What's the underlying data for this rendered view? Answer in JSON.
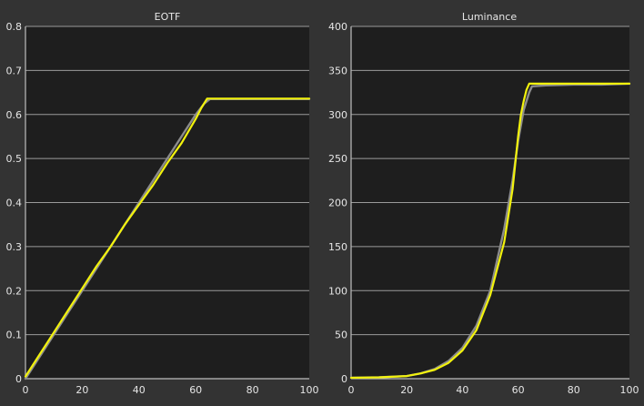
{
  "chart_data": [
    {
      "type": "line",
      "title": "EOTF",
      "xlabel": "",
      "ylabel": "",
      "xlim": [
        0,
        100
      ],
      "ylim": [
        0,
        0.8
      ],
      "xticks": [
        0,
        20,
        40,
        60,
        80,
        100
      ],
      "yticks": [
        0,
        0.1,
        0.2,
        0.3,
        0.4,
        0.5,
        0.6,
        0.7,
        0.8
      ],
      "ytick_labels": [
        "0",
        "0.1",
        "0.2",
        "0.3",
        "0.4",
        "0.5",
        "0.6",
        "0.7",
        "0.8"
      ],
      "grid": true,
      "background": "#1e1e1e",
      "series": [
        {
          "color": "#8c8c8c",
          "x": [
            0,
            5,
            10,
            15,
            20,
            25,
            30,
            35,
            40,
            45,
            50,
            55,
            60,
            63,
            65,
            70,
            80,
            90,
            100
          ],
          "y": [
            0,
            0.05,
            0.1,
            0.15,
            0.2,
            0.25,
            0.3,
            0.35,
            0.4,
            0.45,
            0.5,
            0.55,
            0.6,
            0.625,
            0.635,
            0.635,
            0.635,
            0.635,
            0.635
          ]
        },
        {
          "color": "#f2f20d",
          "x": [
            0,
            5,
            10,
            15,
            20,
            25,
            30,
            35,
            40,
            45,
            50,
            55,
            60,
            62,
            64,
            70,
            80,
            90,
            100
          ],
          "y": [
            0.005,
            0.055,
            0.105,
            0.155,
            0.205,
            0.255,
            0.3,
            0.35,
            0.395,
            0.44,
            0.49,
            0.535,
            0.59,
            0.615,
            0.636,
            0.636,
            0.636,
            0.636,
            0.636
          ]
        }
      ]
    },
    {
      "type": "line",
      "title": "Luminance",
      "xlabel": "",
      "ylabel": "",
      "xlim": [
        0,
        100
      ],
      "ylim": [
        0,
        400
      ],
      "xticks": [
        0,
        20,
        40,
        60,
        80,
        100
      ],
      "yticks": [
        0,
        50,
        100,
        150,
        200,
        250,
        300,
        350,
        400
      ],
      "ytick_labels": [
        "0",
        "50",
        "100",
        "150",
        "200",
        "250",
        "300",
        "350",
        "400"
      ],
      "grid": true,
      "background": "#1e1e1e",
      "series": [
        {
          "color": "#8c8c8c",
          "x": [
            0,
            10,
            20,
            25,
            30,
            35,
            40,
            45,
            50,
            55,
            58,
            60,
            62,
            64,
            65,
            70,
            80,
            90,
            100
          ],
          "y": [
            1,
            1.5,
            3,
            6,
            11,
            20,
            35,
            60,
            100,
            170,
            225,
            270,
            305,
            325,
            332,
            333,
            334,
            334,
            335
          ]
        },
        {
          "color": "#f2f20d",
          "x": [
            0,
            10,
            20,
            25,
            30,
            35,
            40,
            45,
            50,
            55,
            58,
            60,
            61,
            62,
            63,
            64,
            70,
            80,
            90,
            100
          ],
          "y": [
            1,
            1.5,
            3,
            6,
            10,
            18,
            32,
            55,
            95,
            155,
            215,
            275,
            300,
            315,
            328,
            335,
            335,
            335,
            335,
            335
          ]
        }
      ]
    }
  ]
}
